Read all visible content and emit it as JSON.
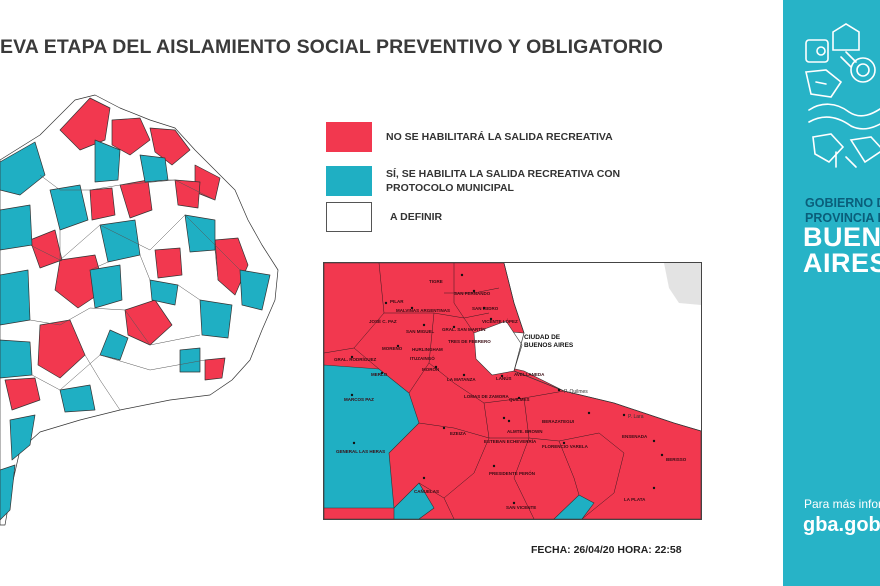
{
  "title": "EVA ETAPA DEL AISLAMIENTO SOCIAL PREVENTIVO Y OBLIGATORIO",
  "colors": {
    "red": "#f2384f",
    "cyan": "#1fafc3",
    "white": "#ffffff",
    "sidebar": "#27b3c7",
    "border": "#333333"
  },
  "legend": {
    "no_salida": "NO SE HABILITARÁ LA SALIDA RECREATIVA",
    "si_salida_line1": "SÍ, SE HABILITA LA SALIDA RECREATIVA CON",
    "si_salida_line2": "PROTOCOLO MUNICIPAL",
    "a_definir": "A DEFINIR"
  },
  "inset_labels": {
    "ciudad_line1": "CIUDAD DE",
    "ciudad_line2": "BUENOS AIRES",
    "tigre": "TIGRE",
    "san_fernando": "SAN FERNANDO",
    "san_isidro": "SAN ISIDRO",
    "vicente_lopez": "VICENTE LÓPEZ",
    "pilar": "PILAR",
    "malvinas": "MALVINAS ARGENTINAS",
    "jose_c_paz": "JOSÉ C. PAZ",
    "san_miguel": "SAN MIGUEL",
    "gral_san_martin": "GRAL. SAN MARTÍN",
    "tres_de_febrero": "TRES DE FEBRERO",
    "hurlingham": "HURLINGHAM",
    "moreno": "MORENO",
    "gral_rodriguez": "GRAL. RODRÍGUEZ",
    "ituzaingo": "ITUZAINGÓ",
    "moron": "MORÓN",
    "merlo": "MERLO",
    "la_matanza": "LA MATANZA",
    "lanus": "LANÚS",
    "avellaneda": "AVELLANEDA",
    "lomas": "LOMAS DE ZAMORA",
    "quilmes": "QUILMES",
    "p_quilmes": "P. Quilmes",
    "p_lara": "P. Lara",
    "berazategui": "BERAZATEGUI",
    "ensenada": "ENSENADA",
    "berisso": "BERISSO",
    "marcos_paz": "MARCOS PAZ",
    "ezeiza": "EZEIZA",
    "almte_brown": "ALMTE. BROWN",
    "esteban_echeverria": "ESTEBAN ECHEVERRÍA",
    "florencio_varela": "FLORENCIO VARELA",
    "gral_las_heras": "GENERAL LAS HERAS",
    "presidente_peron": "PRESIDENTE PERÓN",
    "canuelas": "CAÑUELAS",
    "san_vicente": "SAN VICENTE",
    "la_plata": "LA PLATA"
  },
  "date_text": "FECHA: 26/04/20 HORA: 22:58",
  "sidebar": {
    "gov_line1": "GOBIERNO D",
    "gov_line2": "PROVINCIA D",
    "ba_line1": "BUENO",
    "ba_line2": "AIRES",
    "more_info": "Para más inform",
    "website": "gba.gob"
  }
}
